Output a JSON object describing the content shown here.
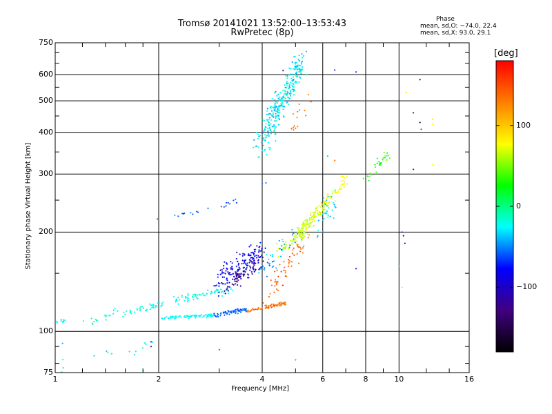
{
  "header": {
    "title_line1": "Tromsø 20141021 13:52:00–13:53:43",
    "title_line2": "RwPretec (8p)"
  },
  "phase_box": {
    "title": "Phase",
    "line1": "mean, sd,O: −74.0, 22.4",
    "line2": "mean, sd,X:  93.0, 29.1"
  },
  "colorbar": {
    "title": "[deg]",
    "ticks": [
      "100",
      "0",
      "−100"
    ],
    "tick_values": [
      100,
      0,
      -100
    ],
    "range": [
      -180,
      180
    ],
    "colors": [
      "#ff0000",
      "#ff7f00",
      "#ffff00",
      "#00ff00",
      "#00ffff",
      "#0000ff",
      "#400080",
      "#000000"
    ]
  },
  "chart_data": {
    "type": "scatter",
    "xlabel": "Frequency [MHz]",
    "ylabel": "Stationary phase Virtual Height [km]",
    "xscale": "log",
    "yscale": "log",
    "xlim": [
      1,
      16
    ],
    "ylim": [
      75,
      750
    ],
    "x_ticks": [
      1,
      2,
      4,
      6,
      8,
      10,
      16
    ],
    "x_tick_labels": [
      "1",
      "2",
      "4",
      "6",
      "8",
      "10",
      "16"
    ],
    "y_ticks": [
      75,
      100,
      200,
      300,
      400,
      500,
      600,
      750
    ],
    "y_tick_labels": [
      "75",
      "100",
      "200",
      "300",
      "400",
      "500",
      "600",
      "750"
    ],
    "grid": true,
    "clusters": [
      {
        "f0": 1.0,
        "f1": 1.08,
        "h0": 107,
        "h1": 108,
        "p": -40,
        "n": 10,
        "jf": 0.01,
        "jh": 1.5,
        "jp": 8
      },
      {
        "f0": 1.2,
        "f1": 1.55,
        "h0": 104,
        "h1": 116,
        "p": -30,
        "n": 18,
        "jf": 0.02,
        "jh": 3,
        "jp": 10
      },
      {
        "f0": 1.55,
        "f1": 2.05,
        "h0": 113,
        "h1": 121,
        "p": -35,
        "n": 40,
        "jf": 0.02,
        "jh": 2,
        "jp": 8
      },
      {
        "f0": 2.05,
        "f1": 2.9,
        "h0": 110,
        "h1": 112,
        "p": -40,
        "n": 90,
        "jf": 0.01,
        "jh": 1,
        "jp": 6
      },
      {
        "f0": 2.9,
        "f1": 3.6,
        "h0": 112,
        "h1": 117,
        "p": -85,
        "n": 70,
        "jf": 0.01,
        "jh": 1.5,
        "jp": 12
      },
      {
        "f0": 3.6,
        "f1": 4.7,
        "h0": 115,
        "h1": 122,
        "p": 150,
        "n": 75,
        "jf": 0.01,
        "jh": 1.5,
        "jp": 8
      },
      {
        "f0": 2.0,
        "f1": 3.3,
        "h0": 122,
        "h1": 135,
        "p": -40,
        "n": 40,
        "jf": 0.05,
        "jh": 3,
        "jp": 10
      },
      {
        "f0": 2.2,
        "f1": 3.0,
        "h0": 127,
        "h1": 132,
        "p": -30,
        "n": 25,
        "jf": 0.05,
        "jh": 2,
        "jp": 10
      },
      {
        "f0": 3.0,
        "f1": 4.0,
        "h0": 140,
        "h1": 175,
        "p": -115,
        "n": 170,
        "jf": 0.15,
        "jh": 12,
        "jp": 20
      },
      {
        "f0": 3.2,
        "f1": 3.8,
        "h0": 140,
        "h1": 160,
        "p": -145,
        "n": 50,
        "jf": 0.08,
        "jh": 7,
        "jp": 8
      },
      {
        "f0": 4.2,
        "f1": 5.4,
        "h0": 130,
        "h1": 195,
        "p": 150,
        "n": 60,
        "jf": 0.15,
        "jh": 8,
        "jp": 20
      },
      {
        "f0": 4.0,
        "f1": 5.0,
        "h0": 150,
        "h1": 200,
        "p": -60,
        "n": 40,
        "jf": 0.2,
        "jh": 10,
        "jp": 25
      },
      {
        "f0": 4.4,
        "f1": 5.4,
        "h0": 175,
        "h1": 200,
        "p": 75,
        "n": 40,
        "jf": 0.1,
        "jh": 6,
        "jp": 15
      },
      {
        "f0": 5.0,
        "f1": 6.2,
        "h0": 195,
        "h1": 245,
        "p": 80,
        "n": 120,
        "jf": 0.15,
        "jh": 8,
        "jp": 8
      },
      {
        "f0": 5.8,
        "f1": 7.0,
        "h0": 230,
        "h1": 290,
        "p": 100,
        "n": 60,
        "jf": 0.15,
        "jh": 10,
        "jp": 15
      },
      {
        "f0": 5.8,
        "f1": 6.6,
        "h0": 200,
        "h1": 260,
        "p": -50,
        "n": 30,
        "jf": 0.2,
        "jh": 15,
        "jp": 20
      },
      {
        "f0": 4.0,
        "f1": 5.2,
        "h0": 370,
        "h1": 650,
        "p": -45,
        "n": 300,
        "jf": 0.2,
        "jh": 45,
        "jp": 25
      },
      {
        "f0": 4.8,
        "f1": 5.6,
        "h0": 400,
        "h1": 550,
        "p": 150,
        "n": 15,
        "jf": 0.1,
        "jh": 30,
        "jp": 10
      },
      {
        "f0": 8.0,
        "f1": 9.3,
        "h0": 285,
        "h1": 345,
        "p": 20,
        "n": 30,
        "jf": 0.2,
        "jh": 10,
        "jp": 40
      },
      {
        "f0": 1.0,
        "f1": 2.0,
        "h0": 78,
        "h1": 93,
        "p": -40,
        "n": 15,
        "jf": 0.05,
        "jh": 4,
        "jp": 20
      },
      {
        "f0": 2.0,
        "f1": 3.5,
        "h0": 218,
        "h1": 250,
        "p": -85,
        "n": 20,
        "jf": 0.05,
        "jh": 4,
        "jp": 15
      }
    ],
    "points": [
      [
        4.0,
        280,
        -90
      ],
      [
        4.1,
        282,
        -80
      ],
      [
        4.6,
        618,
        -120
      ],
      [
        6.5,
        620,
        -100
      ],
      [
        7.5,
        612,
        -100
      ],
      [
        11.5,
        580,
        -120
      ],
      [
        11.0,
        460,
        -150
      ],
      [
        11.5,
        430,
        -160
      ],
      [
        11.6,
        410,
        170
      ],
      [
        12.5,
        440,
        110
      ],
      [
        12.5,
        425,
        100
      ],
      [
        10.5,
        530,
        110
      ],
      [
        10.2,
        200,
        -130
      ],
      [
        10.3,
        195,
        -140
      ],
      [
        10.4,
        185,
        -130
      ],
      [
        10.0,
        158,
        -60
      ],
      [
        10.2,
        136,
        110
      ],
      [
        7.5,
        155,
        -120
      ],
      [
        9.0,
        335,
        50
      ],
      [
        9.2,
        330,
        60
      ],
      [
        11.0,
        310,
        -150
      ],
      [
        12.5,
        320,
        100
      ],
      [
        6.2,
        340,
        -60
      ],
      [
        6.5,
        330,
        150
      ],
      [
        5.0,
        82,
        150
      ],
      [
        3.0,
        88,
        170
      ],
      [
        1.9,
        90,
        -160
      ],
      [
        1.9,
        93,
        -120
      ],
      [
        1.8,
        76,
        -40
      ],
      [
        1.05,
        92,
        -60
      ]
    ]
  }
}
